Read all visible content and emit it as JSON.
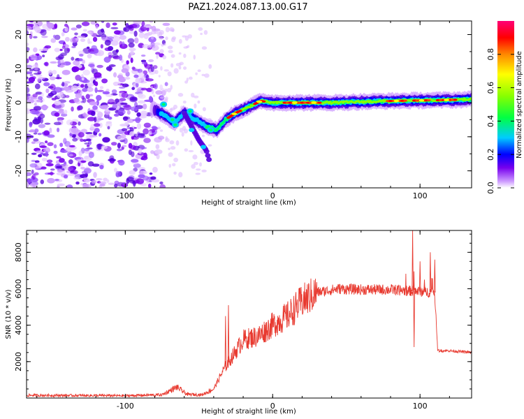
{
  "figure": {
    "title": "PAZ1.2024.087.13.00.G17"
  },
  "chart_data": [
    {
      "type": "heatmap",
      "xlabel": "Height of straight line (km)",
      "ylabel": "Frequency (Hz)",
      "xlim": [
        -167,
        135
      ],
      "ylim": [
        -25,
        24
      ],
      "xticks": [
        -100,
        0,
        100
      ],
      "yticks": [
        -20,
        -10,
        0,
        10,
        20
      ],
      "colorbar": {
        "label": "Normalized spectral amplitude",
        "range": [
          0,
          1
        ],
        "ticks": [
          "0.0",
          "0.2",
          "0.4",
          "0.6",
          "0.8"
        ],
        "colors": [
          "#ffffff",
          "#9966ff",
          "#5500dd",
          "#0000ff",
          "#00ccff",
          "#00ff66",
          "#66ff00",
          "#ffff00",
          "#ff8800",
          "#ff0000",
          "#ff0066"
        ]
      },
      "ridge": {
        "points": [
          [
            -80,
            -2
          ],
          [
            -72,
            -4
          ],
          [
            -67,
            -6
          ],
          [
            -60,
            -3
          ],
          [
            -52,
            -5
          ],
          [
            -45,
            -7
          ],
          [
            -38,
            -8
          ],
          [
            -32,
            -5
          ],
          [
            -25,
            -3
          ],
          [
            -15,
            -1
          ],
          [
            -8,
            0.5
          ],
          [
            0,
            0
          ],
          [
            10,
            0
          ],
          [
            40,
            0
          ],
          [
            80,
            0.5
          ],
          [
            120,
            0.8
          ],
          [
            135,
            1
          ]
        ],
        "branch": [
          [
            -60,
            -3
          ],
          [
            -50,
            -11
          ],
          [
            -45,
            -14
          ],
          [
            -43,
            -17
          ]
        ],
        "noise_region_x": [
          -167,
          -80
        ]
      }
    },
    {
      "type": "line",
      "xlabel": "Height of straight line (km)",
      "ylabel": "SNR (10 * v/v)",
      "xlim": [
        -167,
        135
      ],
      "ylim": [
        0,
        9200
      ],
      "xticks": [
        -100,
        0,
        100
      ],
      "yticks": [
        2000,
        4000,
        6000,
        8000
      ],
      "color": "#e83a30",
      "envelope": [
        [
          -167,
          150
        ],
        [
          -100,
          130
        ],
        [
          -75,
          180
        ],
        [
          -65,
          600
        ],
        [
          -58,
          200
        ],
        [
          -48,
          180
        ],
        [
          -40,
          500
        ],
        [
          -33,
          1600
        ],
        [
          -28,
          2200
        ],
        [
          -20,
          3200
        ],
        [
          -10,
          3400
        ],
        [
          0,
          4000
        ],
        [
          10,
          4500
        ],
        [
          20,
          5300
        ],
        [
          30,
          5800
        ],
        [
          45,
          6000
        ],
        [
          60,
          5950
        ],
        [
          80,
          5950
        ],
        [
          90,
          5900
        ],
        [
          110,
          5800
        ],
        [
          112,
          2600
        ],
        [
          120,
          2600
        ],
        [
          135,
          2500
        ]
      ],
      "spikes": [
        [
          -30,
          5100
        ],
        [
          -32,
          4500
        ],
        [
          95,
          9200
        ],
        [
          96,
          2800
        ],
        [
          100,
          7500
        ],
        [
          103,
          6500
        ],
        [
          107,
          8000
        ],
        [
          110,
          7600
        ],
        [
          109,
          5900
        ]
      ]
    }
  ]
}
